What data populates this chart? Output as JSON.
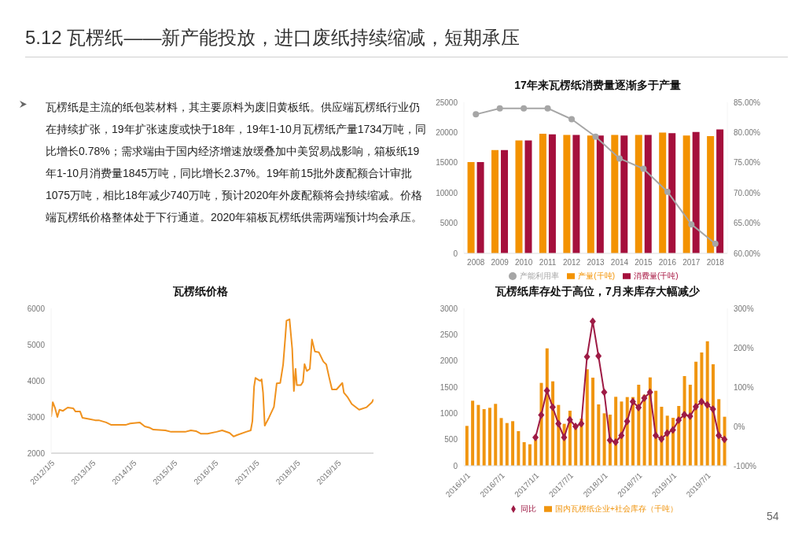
{
  "chart_data": [
    {
      "type": "other",
      "title": "5.12 瓦楞纸——新产能投放，进口废纸持续缩减，短期承压",
      "annotations": [
        "瓦楞纸是主流的纸包装材料，其主要原料为废旧黄板纸。供应端瓦楞纸行业仍在持续扩张，19年扩张速度或快于18年，19年1-10月瓦楞纸产量1734万吨，同比增长0.78%；需求端由于国内经济增速放缓叠加中美贸易战影响，箱板纸19年1-10月消费量1845万吨，同比增长2.37%。19年前15批外废配额合计审批1075万吨，相比18年减少740万吨，预计2020年外废配额将会持续缩减。价格端瓦楞纸价格整体处于下行通道。2020年箱板瓦楞纸供需两端预计均会承压。",
        "54"
      ]
    },
    {
      "type": "bar",
      "title": "17年来瓦楞纸消费量逐渐多于产量",
      "categories": [
        "2008",
        "2009",
        "2010",
        "2011",
        "2012",
        "2013",
        "2014",
        "2015",
        "2016",
        "2017",
        "2018"
      ],
      "series": [
        {
          "name": "产量(千吨)",
          "color": "#f39200",
          "values": [
            15100,
            17100,
            18700,
            19800,
            19600,
            19500,
            19600,
            19600,
            20000,
            19500,
            19400
          ]
        },
        {
          "name": "消费量(千吨)",
          "color": "#a50f3c",
          "values": [
            15100,
            17100,
            18700,
            19700,
            19600,
            19500,
            19500,
            19600,
            19900,
            20100,
            20500
          ]
        },
        {
          "name": "产能利用率",
          "type": "line",
          "axis": "y2",
          "color": "#a6a6a6",
          "marker": "circle",
          "values": [
            83.0,
            84.0,
            84.0,
            84.0,
            82.2,
            79.3,
            75.7,
            74.0,
            70.2,
            64.8,
            61.6
          ]
        }
      ],
      "ylim": [
        0,
        25000
      ],
      "yticks": [
        0,
        5000,
        10000,
        15000,
        20000,
        25000
      ],
      "y2lim": [
        60,
        85
      ],
      "y2ticks": [
        {
          "value": 60,
          "label": "60.00%"
        },
        {
          "value": 65,
          "label": "65.00%"
        },
        {
          "value": 70,
          "label": "70.00%"
        },
        {
          "value": 75,
          "label": "75.00%"
        },
        {
          "value": 80,
          "label": "80.00%"
        },
        {
          "value": 85,
          "label": "85.00%"
        }
      ],
      "legend": "bottom"
    },
    {
      "type": "line",
      "title": "瓦楞纸价格",
      "color": "#f0921e",
      "x": [
        "2012-01-05",
        "2012-01-20",
        "2012-02-10",
        "2012-03-01",
        "2012-03-20",
        "2012-04-20",
        "2012-06-01",
        "2012-07-20",
        "2012-08-10",
        "2012-09-20",
        "2012-10-10",
        "2012-12-15",
        "2013-02-01",
        "2013-03-05",
        "2013-05-10",
        "2013-06-25",
        "2013-10-30",
        "2013-12-10",
        "2014-03-05",
        "2014-04-20",
        "2014-06-05",
        "2014-07-05",
        "2014-10-20",
        "2014-12-10",
        "2015-04-15",
        "2015-06-05",
        "2015-07-20",
        "2015-09-01",
        "2015-11-01",
        "2016-01-20",
        "2016-03-10",
        "2016-05-15",
        "2016-06-20",
        "2016-07-20",
        "2016-10-10",
        "2016-11-20",
        "2016-12-05",
        "2016-12-20",
        "2017-01-01",
        "2017-02-05",
        "2017-02-15",
        "2017-02-25",
        "2017-03-10",
        "2017-03-25",
        "2017-05-01",
        "2017-06-15",
        "2017-07-10",
        "2017-08-10",
        "2017-09-05",
        "2017-09-25",
        "2017-10-05",
        "2017-11-01",
        "2017-11-25",
        "2017-12-10",
        "2017-12-25",
        "2018-01-05",
        "2018-02-10",
        "2018-03-01",
        "2018-03-15",
        "2018-04-05",
        "2018-05-01",
        "2018-05-20",
        "2018-06-15",
        "2018-07-20",
        "2018-08-30",
        "2018-09-25",
        "2018-10-20",
        "2018-11-15",
        "2018-12-25",
        "2019-02-15",
        "2019-03-01",
        "2019-04-05",
        "2019-05-10",
        "2019-07-15",
        "2019-09-20",
        "2019-11-05",
        "2019-11-20"
      ],
      "values": [
        3000,
        3410,
        3240,
        3000,
        3200,
        3170,
        3260,
        3240,
        3150,
        3150,
        2980,
        2940,
        2910,
        2910,
        2850,
        2780,
        2780,
        2820,
        2850,
        2740,
        2700,
        2650,
        2630,
        2590,
        2590,
        2630,
        2610,
        2540,
        2540,
        2590,
        2630,
        2560,
        2460,
        2500,
        2590,
        2630,
        2890,
        3840,
        4080,
        4010,
        4000,
        4040,
        3670,
        2760,
        2980,
        3280,
        3930,
        3940,
        4450,
        5230,
        5660,
        5700,
        4880,
        3720,
        4330,
        3880,
        3880,
        3970,
        4460,
        4270,
        4330,
        5140,
        4810,
        4790,
        4530,
        4450,
        4100,
        3760,
        3760,
        3940,
        3670,
        3540,
        3360,
        3200,
        3270,
        3400,
        3490
      ],
      "xlim": [
        "2012-01-05",
        "2019-11-20"
      ],
      "xticks": [
        {
          "value": "2012-01-05",
          "label": "2012/1/5"
        },
        {
          "value": "2013-01-05",
          "label": "2013/1/5"
        },
        {
          "value": "2014-01-05",
          "label": "2014/1/5"
        },
        {
          "value": "2015-01-05",
          "label": "2015/1/5"
        },
        {
          "value": "2016-01-05",
          "label": "2016/1/5"
        },
        {
          "value": "2017-01-05",
          "label": "2017/1/5"
        },
        {
          "value": "2018-01-05",
          "label": "2018/1/5"
        },
        {
          "value": "2019-01-05",
          "label": "2019/1/5"
        }
      ],
      "ylim": [
        2000,
        6000
      ],
      "yticks": [
        2000,
        3000,
        4000,
        5000,
        6000
      ]
    },
    {
      "type": "bar",
      "title": "瓦楞纸库存处于高位，7月来库存大幅减少",
      "categories": [
        "2016/1/1",
        null,
        null,
        null,
        null,
        null,
        "2016/7/1",
        null,
        null,
        null,
        null,
        null,
        "2017/1/1",
        null,
        null,
        null,
        null,
        null,
        "2017/7/1",
        null,
        null,
        null,
        null,
        null,
        "2018/1/1",
        null,
        null,
        null,
        null,
        null,
        "2018/7/1",
        null,
        null,
        null,
        null,
        null,
        "2019/1/1",
        null,
        null,
        null,
        null,
        null,
        "2019/7/1",
        null,
        null,
        null
      ],
      "series": [
        {
          "name": "国内瓦楞纸企业+社会库存（千吨）",
          "color": "#f0950f",
          "values": [
            760,
            1240,
            1160,
            1080,
            1105,
            1180,
            910,
            815,
            850,
            660,
            450,
            410,
            500,
            1580,
            2240,
            1610,
            1160,
            800,
            1050,
            780,
            900,
            1840,
            1680,
            1170,
            1000,
            975,
            1315,
            1225,
            1310,
            1310,
            1545,
            1355,
            1685,
            1430,
            1125,
            955,
            915,
            1140,
            1710,
            1545,
            1985,
            2160,
            2375,
            1935,
            1270,
            935
          ]
        },
        {
          "name": "同比",
          "type": "line",
          "axis": "y2",
          "color": "#9e1b45",
          "marker": "diamond",
          "values": [
            null,
            null,
            null,
            null,
            null,
            null,
            null,
            null,
            null,
            null,
            null,
            null,
            -28,
            29,
            91,
            49,
            7,
            -28,
            17,
            0,
            7,
            177,
            267,
            179,
            87,
            -35,
            -40,
            -23,
            13,
            63,
            48,
            72,
            87,
            -23,
            -32,
            -17,
            -9,
            16,
            30,
            26,
            50,
            63,
            55,
            44,
            -23,
            -33
          ]
        }
      ],
      "ylim": [
        0,
        3000
      ],
      "yticks": [
        0,
        500,
        1000,
        1500,
        2000,
        2500,
        3000
      ],
      "y2lim": [
        -100,
        300
      ],
      "y2ticks": [
        {
          "value": -100,
          "label": "-100%"
        },
        {
          "value": 0,
          "label": "0%"
        },
        {
          "value": 100,
          "label": "100%"
        },
        {
          "value": 200,
          "label": "200%"
        },
        {
          "value": 300,
          "label": "300%"
        }
      ],
      "legend": "bottom"
    }
  ]
}
